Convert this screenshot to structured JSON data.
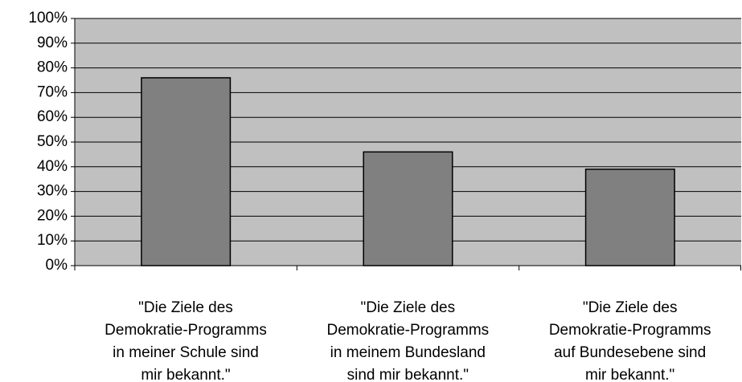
{
  "chart_data": {
    "type": "bar",
    "categories": [
      "\"Die Ziele des\nDemokratie-Programms\nin meiner Schule sind\nmir bekannt.\"",
      "\"Die Ziele des\nDemokratie-Programms\nin meinem Bundesland\nsind mir bekannt.\"",
      "\"Die Ziele des\nDemokratie-Programms\nauf Bundesebene sind\nmir bekannt.\""
    ],
    "values": [
      76,
      46,
      39
    ],
    "color": "#808080",
    "ylim": [
      0,
      100
    ],
    "yticks": [
      {
        "value": 0,
        "label": "0%"
      },
      {
        "value": 10,
        "label": "10%"
      },
      {
        "value": 20,
        "label": "20%"
      },
      {
        "value": 30,
        "label": "30%"
      },
      {
        "value": 40,
        "label": "40%"
      },
      {
        "value": 50,
        "label": "50%"
      },
      {
        "value": 60,
        "label": "60%"
      },
      {
        "value": 70,
        "label": "70%"
      },
      {
        "value": 80,
        "label": "80%"
      },
      {
        "value": 90,
        "label": "90%"
      },
      {
        "value": 100,
        "label": "100%"
      }
    ],
    "grid": true
  }
}
